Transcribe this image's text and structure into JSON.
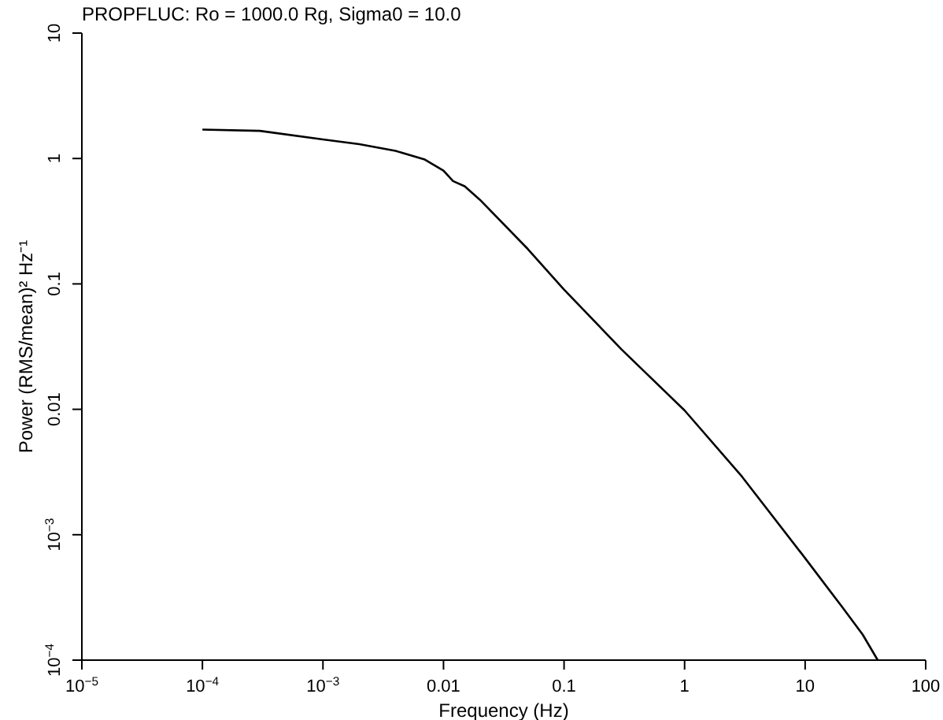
{
  "chart_data": {
    "type": "line",
    "title": "PROPFLUC: Ro = 1000.0 Rg, Sigma0 = 10.0",
    "xlabel": "Frequency (Hz)",
    "ylabel": "Power (RMS/mean)² Hz⁻¹",
    "log": "xy",
    "xlim": [
      1e-05,
      100
    ],
    "ylim": [
      0.0001,
      10
    ],
    "xticks": [
      {
        "value": 1e-05,
        "label": "10$^{−5}$"
      },
      {
        "value": 0.0001,
        "label": "10$^{−4}$"
      },
      {
        "value": 0.001,
        "label": "10$^{−3}$"
      },
      0.01,
      0.1,
      1,
      10,
      100
    ],
    "yticks": [
      {
        "value": 0.0001,
        "label": "10$^{−4}$"
      },
      {
        "value": 0.001,
        "label": "10$^{−3}$"
      },
      0.01,
      0.1,
      1,
      10
    ],
    "x": [
      0.0001,
      0.0003,
      0.001,
      0.002,
      0.004,
      0.007,
      0.01,
      0.012,
      0.015,
      0.02,
      0.05,
      0.1,
      0.3,
      1,
      3,
      10,
      20,
      30,
      40
    ],
    "series": [
      {
        "color": "#000000",
        "values": [
          1.7,
          1.66,
          1.42,
          1.3,
          1.15,
          0.98,
          0.8,
          0.66,
          0.6,
          0.47,
          0.19,
          0.09,
          0.03,
          0.0098,
          0.0029,
          0.00065,
          0.00027,
          0.00016,
          0.0001
        ]
      }
    ]
  }
}
